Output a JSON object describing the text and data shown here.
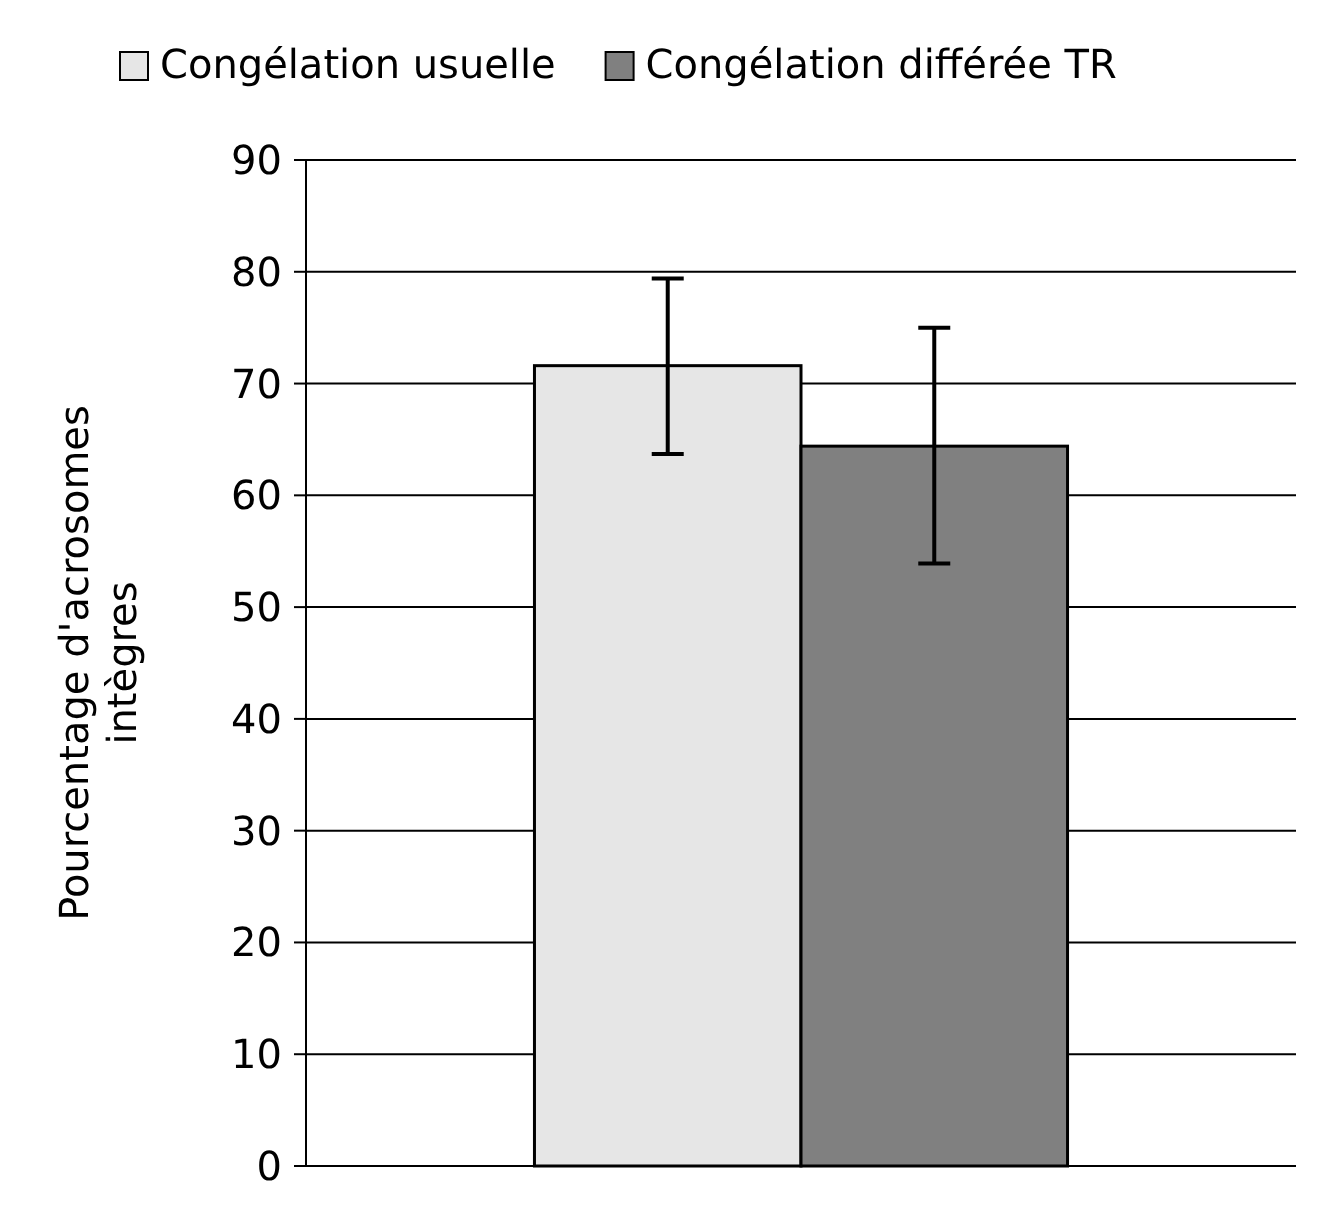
{
  "chart_data": {
    "type": "bar",
    "ylabel": "Pourcentage d'acrosomes intègres",
    "categories": [
      null
    ],
    "series": [
      {
        "name": "Congélation usuelle",
        "color": "#e6e6e6",
        "values": [
          71.6
        ],
        "errors": [
          [
            63.7,
            79.4
          ]
        ]
      },
      {
        "name": "Congélation différée TR",
        "color": "#808080",
        "values": [
          64.4
        ],
        "errors": [
          [
            53.9,
            75
          ]
        ]
      }
    ],
    "ylim": [
      0,
      90
    ],
    "yticks": [
      0,
      10,
      20,
      30,
      40,
      50,
      60,
      70,
      80,
      90
    ],
    "grid": "y",
    "legend": "top"
  }
}
